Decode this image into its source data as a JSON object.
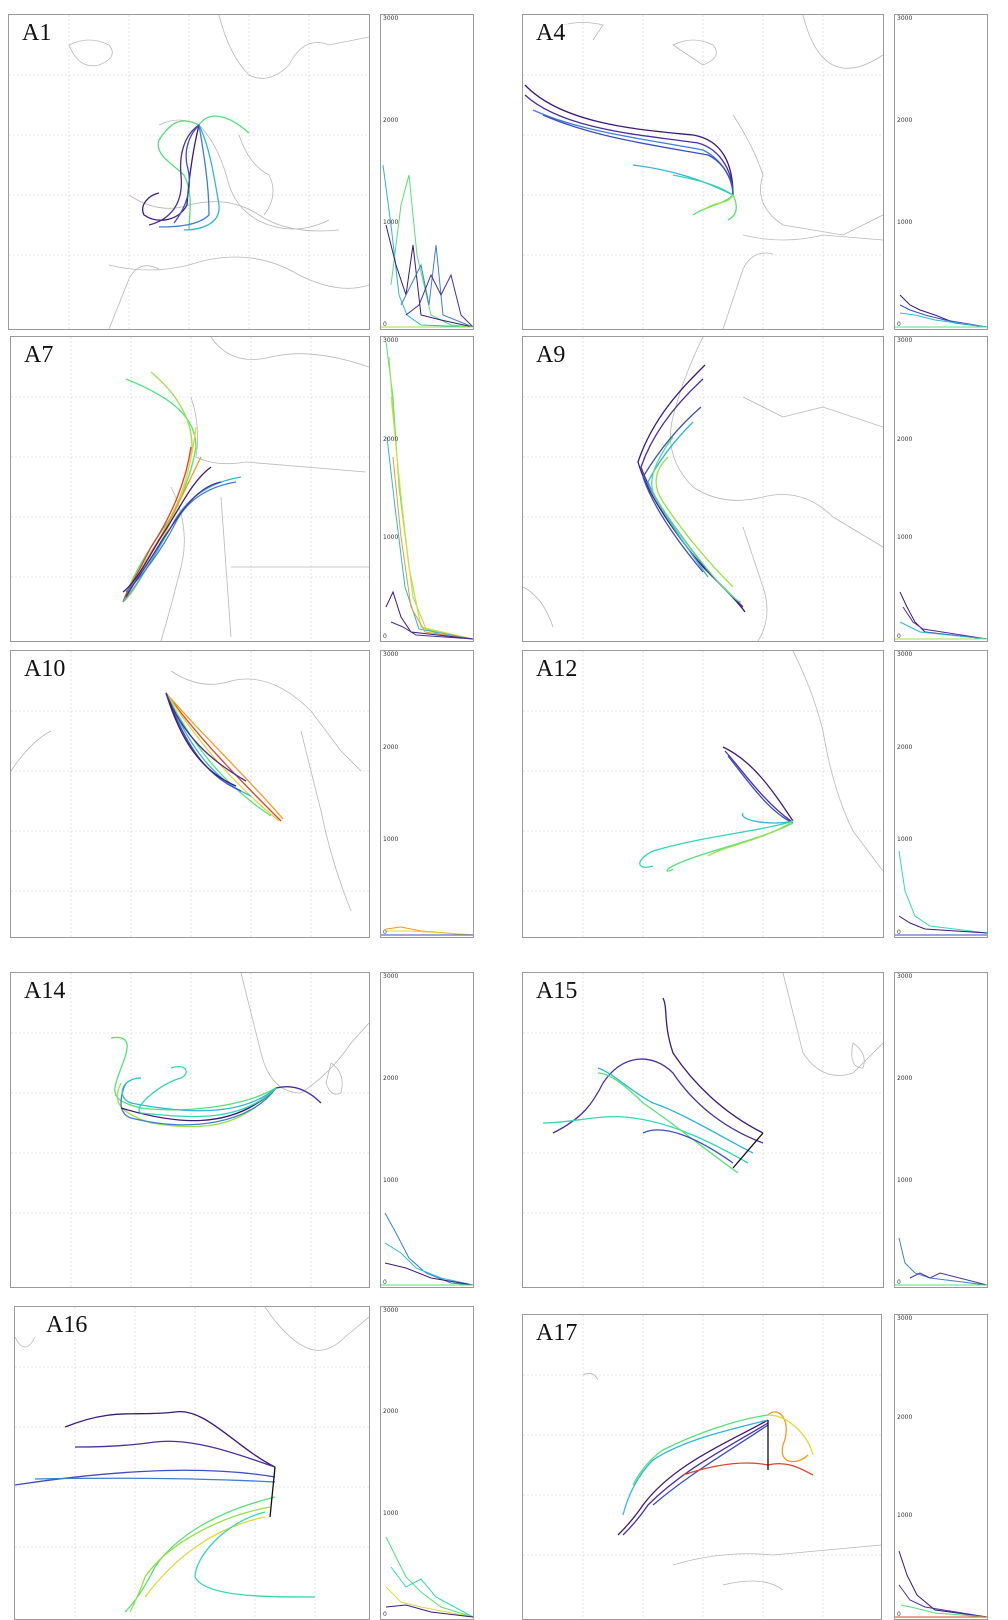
{
  "colors": {
    "traj": [
      "#3b1a7a",
      "#4a2ea0",
      "#3a4fc0",
      "#3f7fd0",
      "#2fb6d6",
      "#33d7b0",
      "#55e07a",
      "#9be04a",
      "#e0d83a",
      "#f09a2a",
      "#e0402a"
    ],
    "coast": "#b8b8b8",
    "grid": "#d0d0d0"
  },
  "panels": [
    {
      "id": "A1",
      "profile_ticks": [
        "3000",
        "2000",
        "1000",
        "0"
      ]
    },
    {
      "id": "A4",
      "profile_ticks": [
        "3000",
        "2000",
        "1000",
        "0"
      ]
    },
    {
      "id": "A7",
      "profile_ticks": [
        "3000",
        "2000",
        "1000",
        "0"
      ]
    },
    {
      "id": "A9",
      "profile_ticks": [
        "3000",
        "2000",
        "1000",
        "0"
      ]
    },
    {
      "id": "A10",
      "profile_ticks": [
        "3000",
        "2000",
        "1000",
        "0"
      ]
    },
    {
      "id": "A12",
      "profile_ticks": [
        "3000",
        "2000",
        "1000",
        "0"
      ]
    },
    {
      "id": "A14",
      "profile_ticks": [
        "3000",
        "2000",
        "1000",
        "0"
      ]
    },
    {
      "id": "A15",
      "profile_ticks": [
        "3000",
        "2000",
        "1000",
        "0"
      ]
    },
    {
      "id": "A16",
      "profile_ticks": [
        "3000",
        "2000",
        "1000",
        "0"
      ]
    },
    {
      "id": "A17",
      "profile_ticks": [
        "3000",
        "2000",
        "1000",
        "0"
      ]
    }
  ]
}
